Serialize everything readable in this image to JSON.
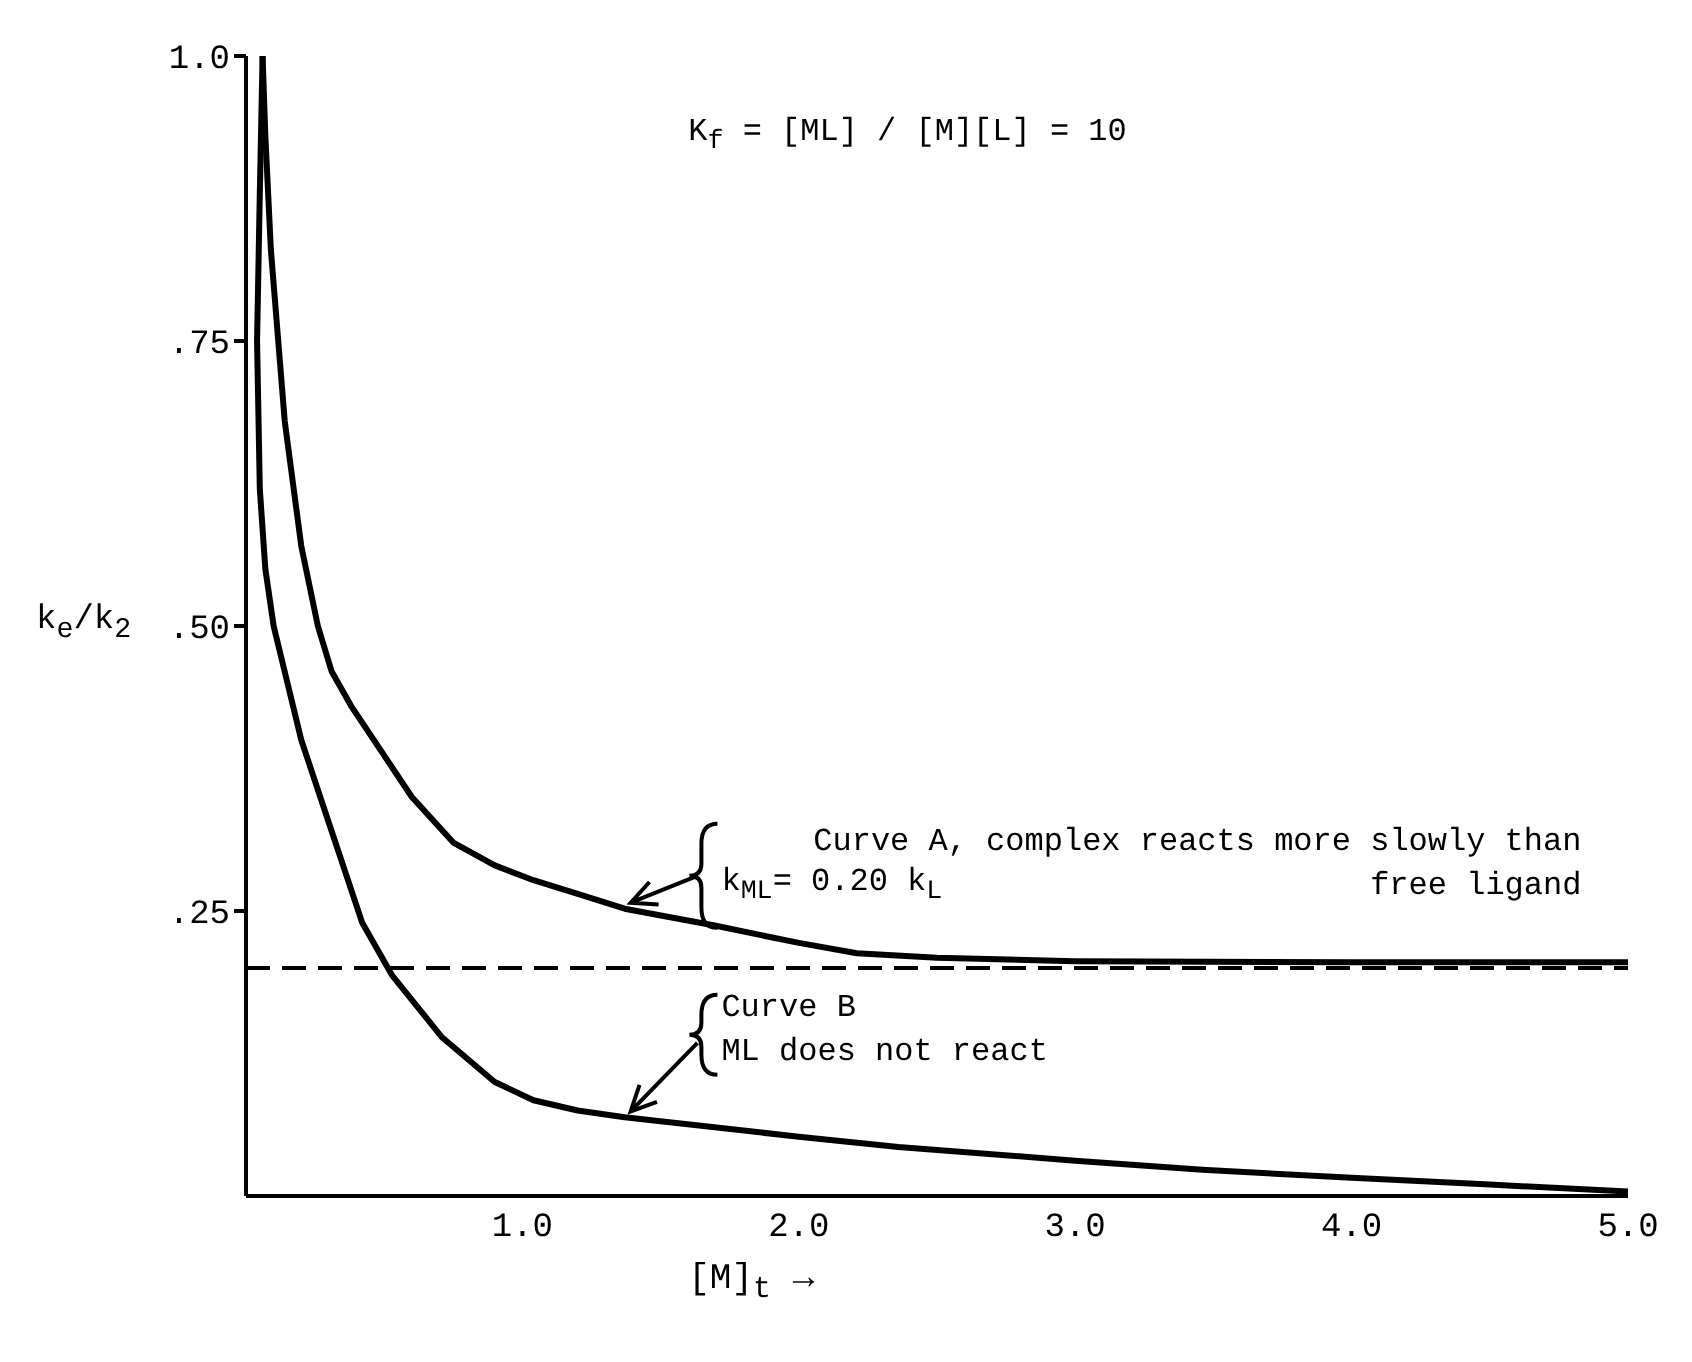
{
  "chart_data": {
    "type": "line",
    "xlabel": "[M]$_{t}$ →",
    "ylabel": "k$_{e}$/k$_{2}$",
    "xlim": [
      0,
      5
    ],
    "ylim": [
      0,
      1
    ],
    "xticks": [
      {
        "value": 1,
        "label": "1.0"
      },
      {
        "value": 2,
        "label": "2.0"
      },
      {
        "value": 3,
        "label": "3.0"
      },
      {
        "value": 4,
        "label": "4.0"
      },
      {
        "value": 5,
        "label": "5.0"
      }
    ],
    "yticks": [
      {
        "value": 0.25,
        "label": ".25"
      },
      {
        "value": 0.5,
        "label": ".50"
      },
      {
        "value": 0.75,
        "label": ".75"
      },
      {
        "value": 1,
        "label": "1.0"
      }
    ],
    "series": [
      {
        "color": "#000000",
        "x": [
          0.06,
          0.07,
          0.09,
          0.14,
          0.2,
          0.26,
          0.31,
          0.38,
          0.49,
          0.6,
          0.75,
          0.9,
          1.04,
          1.2,
          1.37,
          1.7,
          2.0,
          2.21,
          2.5,
          3.0,
          4.0,
          5.0
        ],
        "values": [
          1.0,
          0.93,
          0.83,
          0.68,
          0.57,
          0.5,
          0.46,
          0.43,
          0.39,
          0.35,
          0.31,
          0.29,
          0.277,
          0.265,
          0.252,
          0.237,
          0.222,
          0.213,
          0.209,
          0.206,
          0.205,
          0.205
        ]
      },
      {
        "color": "#000000",
        "x": [
          0.06,
          0.05,
          0.04,
          0.05,
          0.07,
          0.1,
          0.14,
          0.2,
          0.31,
          0.42,
          0.53,
          0.71,
          0.9,
          1.04,
          1.2,
          1.37,
          2.0,
          2.36,
          3.0,
          3.46,
          4.0,
          4.5,
          5.0
        ],
        "values": [
          1.0,
          0.88,
          0.75,
          0.62,
          0.55,
          0.5,
          0.46,
          0.4,
          0.32,
          0.24,
          0.193,
          0.139,
          0.1,
          0.084,
          0.075,
          0.069,
          0.052,
          0.043,
          0.031,
          0.023,
          0.016,
          0.01,
          0.004
        ]
      }
    ],
    "ref_lines": [
      {
        "axis": "y",
        "value": 0.2,
        "color": "#000000",
        "line_style": "dashed"
      }
    ],
    "annotations": [
      "K$_{f}$ = [ML] / [M][L] = 10",
      "Curve A, complex reacts more slowly than free ligand",
      {
        "text": "k$_{ML}$= 0.20 k$_{L}$",
        "x": 1.37,
        "y": 0.252
      },
      "Curve B",
      {
        "text": "ML does not react",
        "x": 1.37,
        "y": 0.069
      }
    ],
    "marker": "none",
    "line_style": "solid",
    "grid": false
  }
}
